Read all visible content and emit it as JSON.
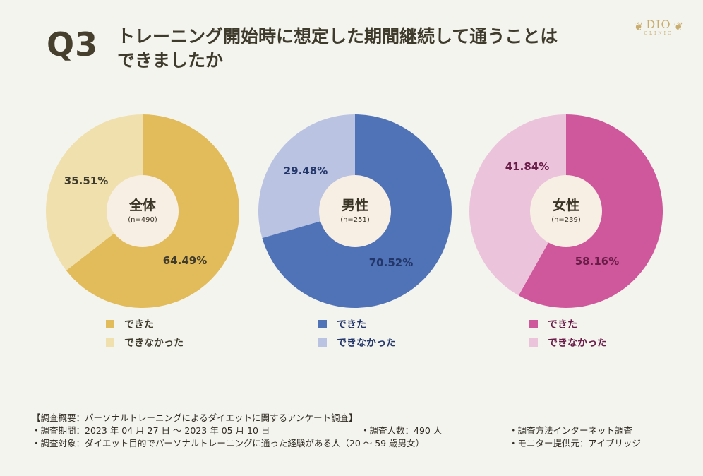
{
  "header": {
    "q_label": "Q3",
    "title_line1": "トレーニング開始時に想定した期間継続して通うことは",
    "title_line2": "できましたか",
    "logo_text": "DIO",
    "logo_sub": "CLINIC"
  },
  "colors": {
    "background": "#f4f4ef",
    "all_yes": "#e2bc5a",
    "all_no": "#f0e0ae",
    "male_yes": "#5072b6",
    "male_no": "#bbc3e2",
    "female_yes": "#cf589c",
    "female_no": "#ebc4dc",
    "center": "#f7efe4"
  },
  "chart_data": [
    {
      "type": "pie",
      "variant": "donut",
      "center_title": "全体",
      "center_n": "(n=490)",
      "categories": [
        "できた",
        "できなかった"
      ],
      "values": [
        64.49,
        35.51
      ],
      "value_labels": [
        "64.49%",
        "35.51%"
      ],
      "colors": [
        "#e2bc5a",
        "#f0e0ae"
      ],
      "label_color": "#3f3b2c"
    },
    {
      "type": "pie",
      "variant": "donut",
      "center_title": "男性",
      "center_n": "(n=251)",
      "categories": [
        "できた",
        "できなかった"
      ],
      "values": [
        70.52,
        29.48
      ],
      "value_labels": [
        "70.52%",
        "29.48%"
      ],
      "colors": [
        "#5072b6",
        "#bbc3e2"
      ],
      "label_color": "#23366a"
    },
    {
      "type": "pie",
      "variant": "donut",
      "center_title": "女性",
      "center_n": "(n=239)",
      "categories": [
        "できた",
        "できなかった"
      ],
      "values": [
        58.16,
        41.84
      ],
      "value_labels": [
        "58.16%",
        "41.84%"
      ],
      "colors": [
        "#cf589c",
        "#ebc4dc"
      ],
      "label_color": "#6a1c48"
    }
  ],
  "legends": [
    {
      "yes": "できた",
      "no": "できなかった",
      "text_color": "#3f3b2c"
    },
    {
      "yes": "できた",
      "no": "できなかった",
      "text_color": "#23366a"
    },
    {
      "yes": "できた",
      "no": "できなかった",
      "text_color": "#6a1c48"
    }
  ],
  "footer": {
    "heading": "【調査概要：パーソナルトレーニングによるダイエットに関するアンケート調査】",
    "period": "・調査期間：2023 年 04 月 27 日 ～ 2023 年 05 月 10 日",
    "count": "・調査人数：490 人",
    "method": "・調査方法インターネット調査",
    "target": "・調査対象：ダイエット目的でパーソナルトレーニングに通った経験がある人（20 ～ 59 歳男女）",
    "provider": "・モニター提供元：アイブリッジ"
  }
}
